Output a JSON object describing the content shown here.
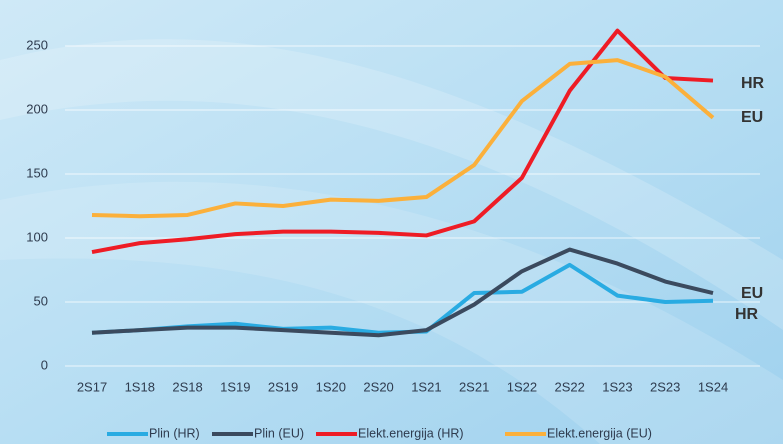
{
  "chart_data": {
    "type": "line",
    "categories": [
      "2S17",
      "1S18",
      "2S18",
      "1S19",
      "2S19",
      "1S20",
      "2S20",
      "1S21",
      "2S21",
      "1S22",
      "2S22",
      "1S23",
      "2S23",
      "1S24"
    ],
    "series": [
      {
        "name": "Plin (HR)",
        "color": "#29abe2",
        "values": [
          26,
          28,
          31,
          33,
          29,
          30,
          26,
          27,
          57,
          58,
          79,
          55,
          50,
          51
        ]
      },
      {
        "name": "Plin (EU)",
        "color": "#3b4a5e",
        "values": [
          26,
          28,
          30,
          30,
          28,
          26,
          24,
          28,
          48,
          74,
          91,
          80,
          66,
          57
        ]
      },
      {
        "name": "Elekt.energija (HR)",
        "color": "#ee1c25",
        "values": [
          89,
          96,
          99,
          103,
          105,
          105,
          104,
          102,
          113,
          147,
          215,
          262,
          225,
          223
        ]
      },
      {
        "name": "Elekt.energija (EU)",
        "color": "#fbb03b",
        "values": [
          118,
          117,
          118,
          127,
          125,
          130,
          129,
          132,
          157,
          207,
          236,
          239,
          226,
          194
        ]
      }
    ],
    "ylim": [
      0,
      270
    ],
    "yticks": [
      0,
      50,
      100,
      150,
      200,
      250
    ],
    "grid": true,
    "annotations": [
      "HR",
      "EU",
      "EU",
      "HR"
    ]
  }
}
